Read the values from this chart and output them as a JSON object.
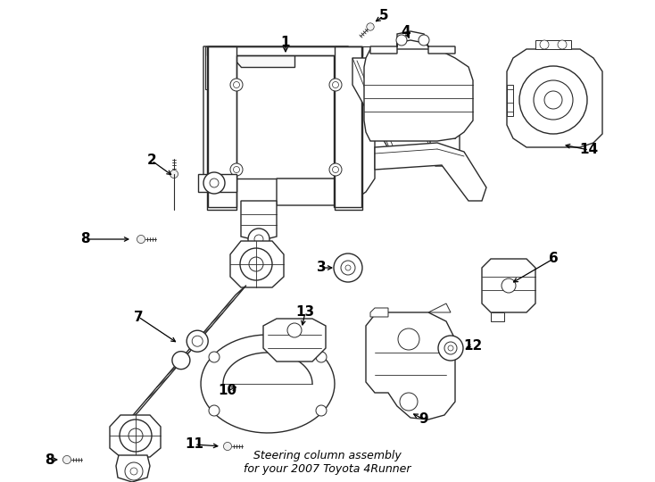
{
  "title": "Steering column assembly",
  "subtitle": "for your 2007 Toyota 4Runner",
  "background_color": "#ffffff",
  "line_color": "#2a2a2a",
  "text_color": "#000000",
  "label_fontsize": 11,
  "title_fontsize": 9,
  "fig_width": 7.34,
  "fig_height": 5.4,
  "dpi": 100
}
